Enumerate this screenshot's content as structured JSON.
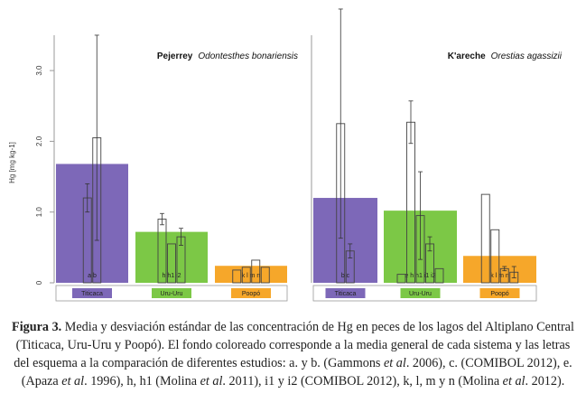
{
  "chart_data": [
    {
      "type": "bar",
      "title": "Pejerrey",
      "subtitle": "Odontesthes bonariensis",
      "y_label": "Hg [mg kg-1]",
      "ylim": [
        0,
        3.5
      ],
      "yticks": [
        0,
        {
          "value": 1,
          "label": "1.0"
        },
        {
          "value": 2,
          "label": "2.0"
        },
        {
          "value": 3,
          "label": "3.0"
        }
      ],
      "groups": [
        {
          "name": "Titicaca",
          "color": "#7d68b8",
          "mean": 1.68,
          "study_label": "a b",
          "values": [
            1.2,
            2.05
          ],
          "errors": [
            0.2,
            1.45
          ]
        },
        {
          "name": "Uru-Uru",
          "color": "#7cc846",
          "mean": 0.72,
          "study_label": "h h1 i2",
          "values": [
            0.9,
            0.55,
            0.65
          ],
          "errors": [
            0.08,
            null,
            0.12
          ]
        },
        {
          "name": "Poopó",
          "color": "#f6a72a",
          "mean": 0.24,
          "study_label": "k l m n",
          "values": [
            0.18,
            0.22,
            0.32,
            0.22
          ],
          "errors": [
            null,
            null,
            null,
            null
          ]
        }
      ]
    },
    {
      "type": "bar",
      "title": "K'areche",
      "subtitle": "Orestias agassizii",
      "ylim": [
        0,
        3.5
      ],
      "groups": [
        {
          "name": "Titicaca",
          "color": "#7d68b8",
          "mean": 1.2,
          "study_label": "b c",
          "values": [
            2.25,
            0.45
          ],
          "errors": [
            1.62,
            0.1
          ]
        },
        {
          "name": "Uru-Uru",
          "color": "#7cc846",
          "mean": 1.02,
          "study_label": "e h h1 i1 i2",
          "values": [
            0.12,
            2.27,
            0.95,
            0.55,
            0.2
          ],
          "errors": [
            null,
            0.3,
            0.62,
            0.1,
            null
          ]
        },
        {
          "name": "Poopó",
          "color": "#f6a72a",
          "mean": 0.38,
          "study_label": "k l m n",
          "values": [
            1.25,
            0.75,
            0.2,
            0.15
          ],
          "errors": [
            null,
            null,
            0.03,
            0.08
          ]
        }
      ]
    }
  ],
  "caption": {
    "label": "Figura 3.",
    "runs": [
      " Media y desviación estándar de las concentración de Hg en peces de los lagos del Altiplano Central (Titicaca, Uru-Uru y Poopó). El fondo coloreado corresponde a la media general de cada sistema y las letras del esquema a la comparación de diferentes estudios: a. y b. (Gammons ",
      "et al",
      ". 2006), c. (COMIBOL 2012), e. (Apaza ",
      "et al",
      ". 1996), h, h1 (Molina ",
      "et al",
      ". 2011), i1 y i2 (COMIBOL 2012), k, l, m y n (Molina ",
      "et al",
      ". 2012)."
    ]
  }
}
